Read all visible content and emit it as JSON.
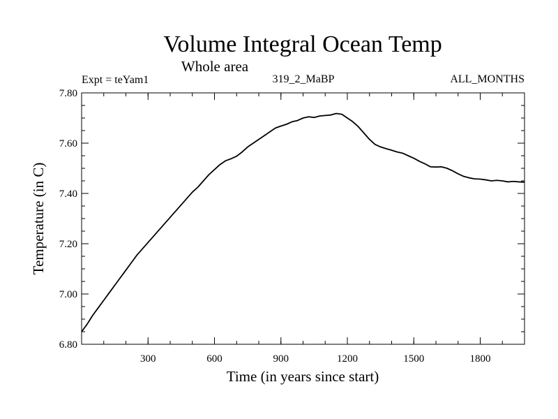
{
  "chart_data": {
    "type": "line",
    "title": "Volume Integral Ocean Temp",
    "subtitle": "Whole area",
    "annotations": {
      "left": "Expt = teYam1",
      "center": "319_2_MaBP",
      "right": "ALL_MONTHS"
    },
    "xlabel": "Time (in years since start)",
    "ylabel": "Temperature (in C)",
    "xlim": [
      0,
      2000
    ],
    "ylim": [
      6.8,
      7.8
    ],
    "x_ticks": [
      300,
      600,
      900,
      1200,
      1500,
      1800
    ],
    "x_tick_labels": [
      "300",
      "600",
      "900",
      "1200",
      "1500",
      "1800"
    ],
    "y_ticks": [
      6.8,
      7.0,
      7.2,
      7.4,
      7.6,
      7.8
    ],
    "y_tick_labels": [
      "6.80",
      "7.00",
      "7.20",
      "7.40",
      "7.60",
      "7.80"
    ],
    "grid": false,
    "series": [
      {
        "name": "Volume Integral Ocean Temp",
        "color": "#000000",
        "x": [
          0,
          25,
          50,
          75,
          100,
          125,
          150,
          175,
          200,
          225,
          250,
          275,
          300,
          325,
          350,
          375,
          400,
          425,
          450,
          475,
          500,
          525,
          550,
          575,
          600,
          625,
          650,
          675,
          700,
          725,
          750,
          775,
          800,
          825,
          850,
          875,
          900,
          925,
          950,
          975,
          1000,
          1025,
          1050,
          1075,
          1100,
          1125,
          1150,
          1175,
          1200,
          1225,
          1250,
          1275,
          1300,
          1325,
          1350,
          1375,
          1400,
          1425,
          1450,
          1475,
          1500,
          1525,
          1550,
          1575,
          1600,
          1625,
          1650,
          1675,
          1700,
          1725,
          1750,
          1775,
          1800,
          1825,
          1850,
          1875,
          1900,
          1925,
          1950,
          1975,
          2000
        ],
        "values": [
          6.85,
          6.88,
          6.915,
          6.945,
          6.975,
          7.005,
          7.035,
          7.065,
          7.095,
          7.125,
          7.155,
          7.18,
          7.205,
          7.23,
          7.255,
          7.28,
          7.305,
          7.33,
          7.355,
          7.38,
          7.405,
          7.425,
          7.45,
          7.475,
          7.495,
          7.515,
          7.53,
          7.538,
          7.548,
          7.565,
          7.585,
          7.6,
          7.615,
          7.63,
          7.645,
          7.66,
          7.668,
          7.675,
          7.685,
          7.69,
          7.7,
          7.705,
          7.702,
          7.708,
          7.71,
          7.712,
          7.718,
          7.715,
          7.7,
          7.685,
          7.665,
          7.64,
          7.615,
          7.595,
          7.585,
          7.578,
          7.572,
          7.565,
          7.56,
          7.55,
          7.54,
          7.528,
          7.518,
          7.506,
          7.505,
          7.506,
          7.5,
          7.49,
          7.478,
          7.468,
          7.462,
          7.458,
          7.457,
          7.454,
          7.45,
          7.452,
          7.45,
          7.446,
          7.448,
          7.446,
          7.445
        ]
      }
    ]
  }
}
